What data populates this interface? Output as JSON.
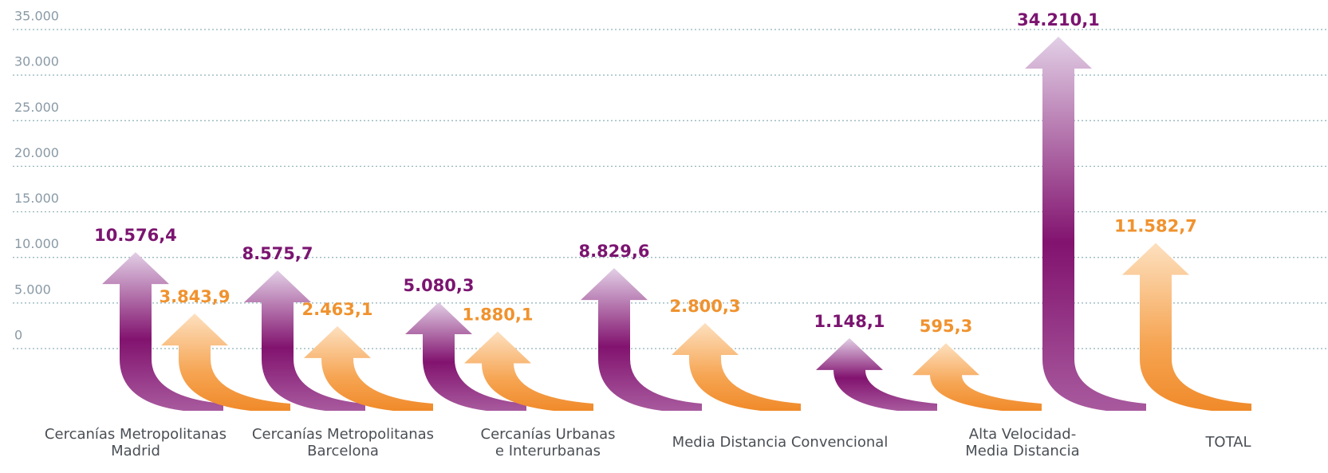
{
  "chart_data": {
    "type": "arrow",
    "categories": [
      [
        "Cercanías Metropolitanas",
        "Madrid"
      ],
      [
        "Cercanías Metropolitanas",
        "Barcelona"
      ],
      [
        "Cercanías Urbanas",
        "e Interurbanas"
      ],
      [
        "Media Distancia Convencional"
      ],
      [
        "Alta Velocidad-",
        "Media Distancia"
      ],
      [
        "TOTAL"
      ]
    ],
    "series": [
      {
        "color": "#7b1470",
        "values": [
          10576.4,
          8575.7,
          5080.3,
          8829.6,
          1148.1,
          34210.1
        ],
        "value_labels": [
          "10.576,4",
          "8.575,7",
          "5.080,3",
          "8.829,6",
          "1.148,1",
          "34.210,1"
        ]
      },
      {
        "color": "#f0922e",
        "values": [
          3843.9,
          2463.1,
          1880.1,
          2800.3,
          595.3,
          11582.7
        ],
        "value_labels": [
          "3.843,9",
          "2.463,1",
          "1.880,1",
          "2.800,3",
          "595,3",
          "11.582,7"
        ]
      }
    ],
    "ylim": [
      0,
      35000
    ],
    "yticks": [
      0,
      {
        "value": 5000,
        "label": "5.000"
      },
      {
        "value": 10000,
        "label": "10.000"
      },
      {
        "value": 15000,
        "label": "15.000"
      },
      {
        "value": 20000,
        "label": "20.000"
      },
      {
        "value": 25000,
        "label": "25.000"
      },
      {
        "value": 30000,
        "label": "30.000"
      },
      {
        "value": 35000,
        "label": "35.000"
      }
    ],
    "grid": true
  }
}
